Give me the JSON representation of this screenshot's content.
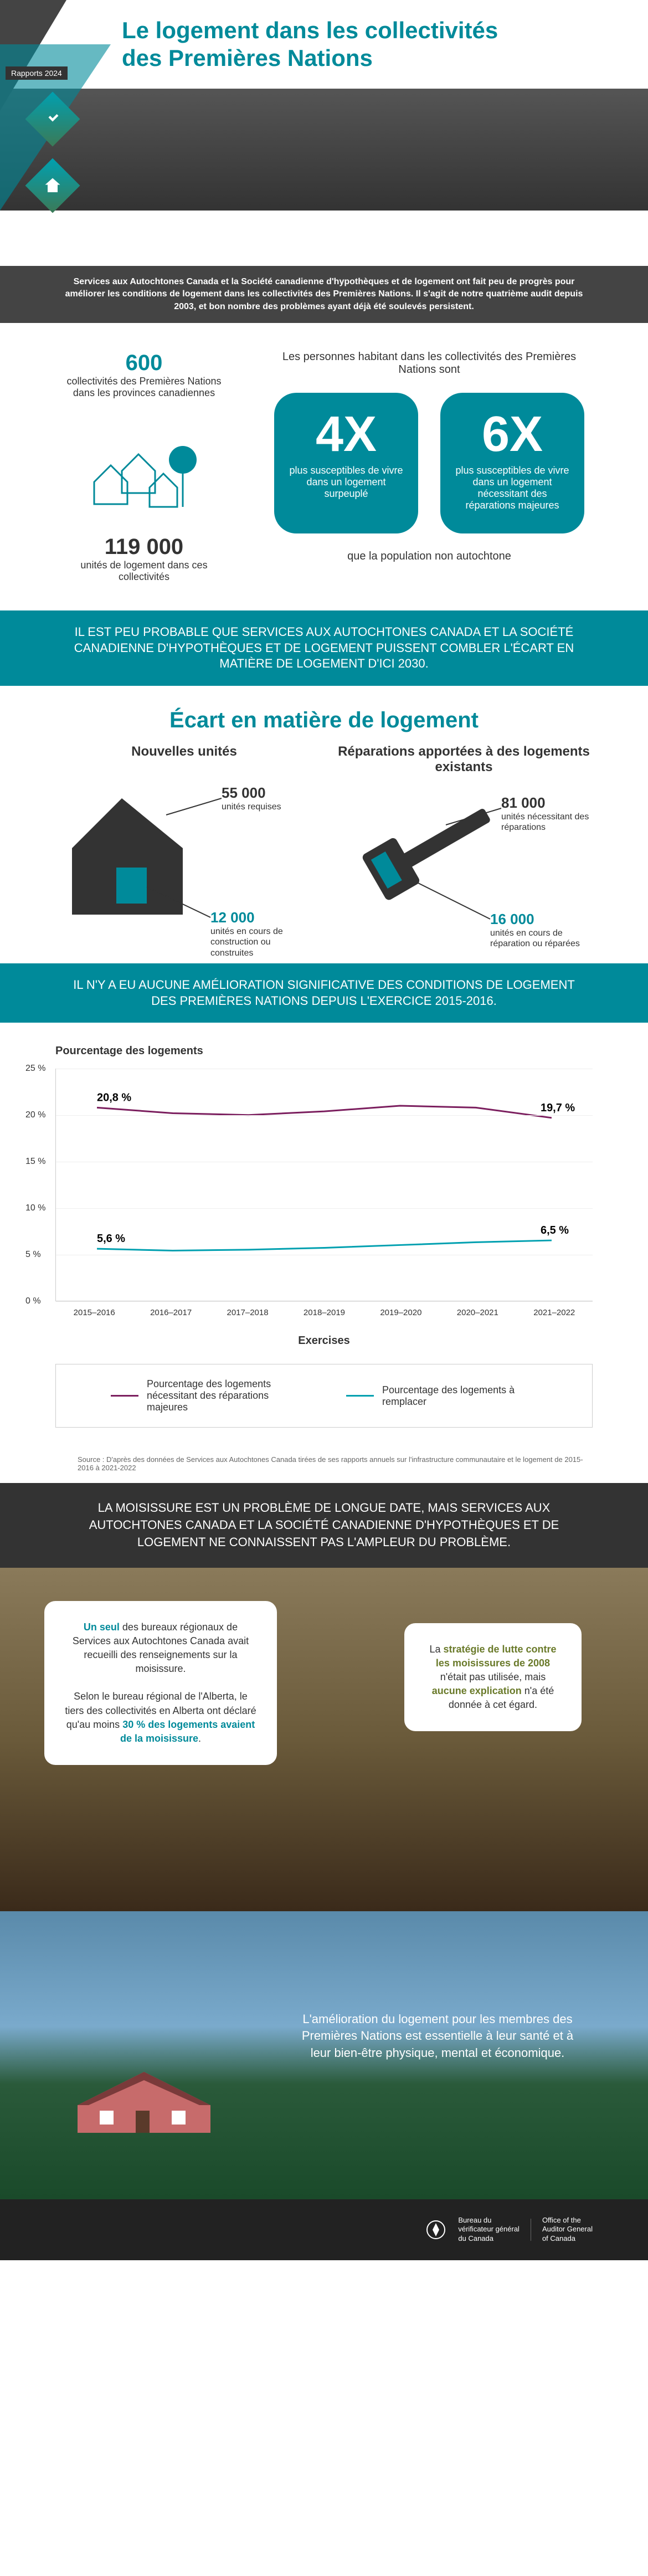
{
  "header": {
    "title_line1": "Le logement dans les collectivités",
    "title_line2": "des Premières Nations",
    "rapports": "Rapports 2024"
  },
  "intro": "Services aux Autochtones Canada et la Société canadienne d'hypothèques et de logement ont fait peu de progrès pour améliorer les conditions de logement dans les collectivités des Premières Nations. Il s'agit de notre quatrième audit depuis 2003, et bon nombre des problèmes ayant déjà été soulevés persistent.",
  "stats": {
    "count_600": "600",
    "count_600_text": "collectivités des Premières Nations dans les provinces canadiennes",
    "count_119000": "119 000",
    "count_119000_text": "unités de logement dans ces collectivités",
    "right_intro": "Les personnes habitant dans les collectivités des Premières Nations sont",
    "block4x": {
      "mult": "4X",
      "text": "plus susceptibles de vivre dans un logement surpeuplé"
    },
    "block6x": {
      "mult": "6X",
      "text": "plus susceptibles de vivre dans un logement nécessitant des réparations majeures"
    },
    "footnote": "que la population non autochtone"
  },
  "band1": "IL EST PEU PROBABLE QUE SERVICES AUX AUTOCHTONES CANADA ET LA SOCIÉTÉ CANADIENNE D'HYPOTHÈQUES ET DE LOGEMENT PUISSENT COMBLER L'ÉCART EN MATIÈRE DE LOGEMENT D'ICI 2030.",
  "ecart": {
    "title": "Écart en matière de logement",
    "col1": {
      "heading": "Nouvelles unités",
      "a_num": "55 000",
      "a_text": "unités requises",
      "b_num": "12 000",
      "b_text": "unités en cours de construction ou construites",
      "a_color": "#333333",
      "b_color": "#008a9a"
    },
    "col2": {
      "heading": "Réparations apportées à des logements existants",
      "a_num": "81 000",
      "a_text": "unités nécessitant des réparations",
      "b_num": "16 000",
      "b_text": "unités en cours de réparation ou réparées",
      "a_color": "#333333",
      "b_color": "#008a9a"
    }
  },
  "band2": "IL N'Y A EU AUCUNE AMÉLIORATION SIGNIFICATIVE DES CONDITIONS DE LOGEMENT DES PREMIÈRES NATIONS DEPUIS L'EXERCICE 2015-2016.",
  "chart": {
    "ylabel": "Pourcentage des logements",
    "xlabel": "Exercises",
    "ylim": [
      0,
      25
    ],
    "ytick_step": 5,
    "yticks_labels": [
      "0 %",
      "5 %",
      "10 %",
      "15 %",
      "20 %",
      "25 %"
    ],
    "categories": [
      "2015–2016",
      "2016–2017",
      "2017–2018",
      "2018–2019",
      "2019–2020",
      "2020–2021",
      "2021–2022"
    ],
    "series": [
      {
        "name": "repairs",
        "color": "#7b1e5e",
        "values": [
          20.8,
          20.2,
          20.0,
          20.4,
          21.0,
          20.8,
          19.7
        ],
        "label_start": "20,8 %",
        "label_end": "19,7 %",
        "legend": "Pourcentage des logements nécessitant des réparations majeures"
      },
      {
        "name": "replace",
        "color": "#00a0b0",
        "values": [
          5.6,
          5.4,
          5.5,
          5.7,
          6.0,
          6.3,
          6.5
        ],
        "label_start": "5,6 %",
        "label_end": "6,5 %",
        "legend": "Pourcentage des logements à remplacer"
      }
    ],
    "source": "Source : D'après des données de Services aux Autochtones Canada tirées de ses rapports annuels sur l'infrastructure communautaire et le logement de 2015-2016 à 2021-2022"
  },
  "mould": {
    "header": "LA MOISISSURE EST UN PROBLÈME DE LONGUE DATE, MAIS SERVICES AUX AUTOCHTONES CANADA ET LA SOCIÉTÉ CANADIENNE D'HYPOTHÈQUES ET DE LOGEMENT NE CONNAISSENT PAS L'AMPLEUR DU PROBLÈME.",
    "left_hl1": "Un seul",
    "left_txt1": " des bureaux régionaux de Services aux Autochtones Canada avait recueilli des renseignements sur la moisissure.",
    "left_txt2a": "Selon le bureau régional de l'Alberta, le tiers des collectivités en Alberta ont déclaré qu'au moins ",
    "left_hl2": "30 % des logements avaient de la moisissure",
    "left_txt2b": ".",
    "right_txt1": "La ",
    "right_hl1": "stratégie de lutte contre les moisissures de 2008",
    "right_txt2": " n'était pas utilisée, mais ",
    "right_hl2": "aucune explication",
    "right_txt3": " n'a été donnée à cet égard."
  },
  "landscape_text": "L'amélioration du logement pour les membres des Premières Nations est essentielle à leur santé et à leur bien-être physique, mental et économique.",
  "footer": {
    "fr1": "Bureau du",
    "fr2": "vérificateur général",
    "fr3": "du Canada",
    "en1": "Office of the",
    "en2": "Auditor General",
    "en3": "of Canada"
  }
}
